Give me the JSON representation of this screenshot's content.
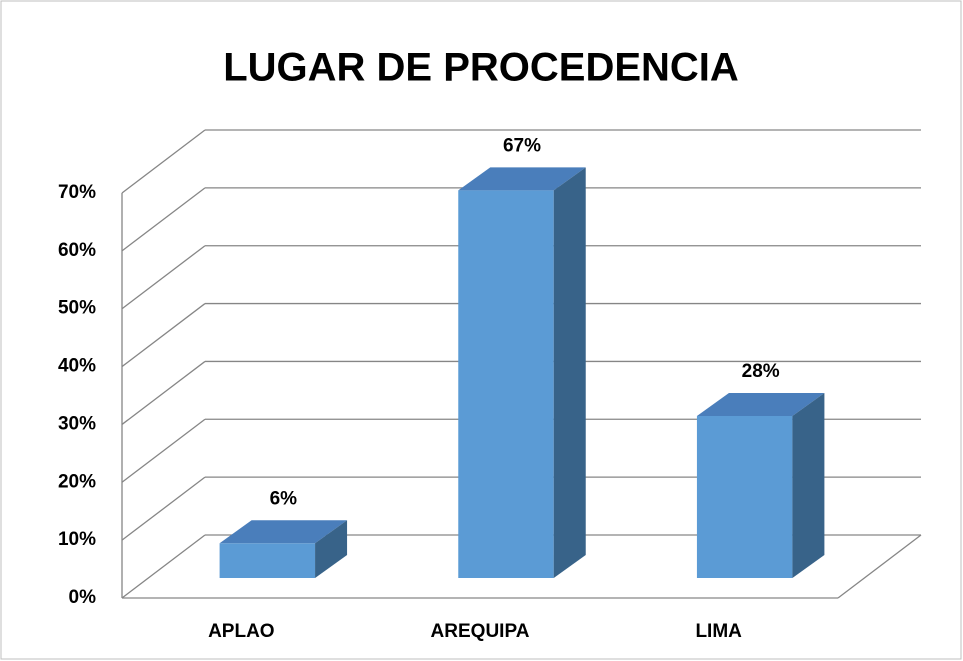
{
  "chart_data": {
    "type": "bar3d",
    "title": "LUGAR DE PROCEDENCIA",
    "categories": [
      "APLAO",
      "AREQUIPA",
      "LIMA"
    ],
    "values": [
      6,
      67,
      28
    ],
    "value_labels": [
      "6%",
      "67%",
      "28%"
    ],
    "color": "#5b9bd5",
    "ylim": [
      0,
      70
    ],
    "yticks": [
      {
        "value": 0,
        "label": "0%"
      },
      {
        "value": 10,
        "label": "10%"
      },
      {
        "value": 20,
        "label": "20%"
      },
      {
        "value": 30,
        "label": "30%"
      },
      {
        "value": 40,
        "label": "40%"
      },
      {
        "value": 50,
        "label": "50%"
      },
      {
        "value": 60,
        "label": "60%"
      },
      {
        "value": 70,
        "label": "70%"
      }
    ],
    "grid": true
  }
}
